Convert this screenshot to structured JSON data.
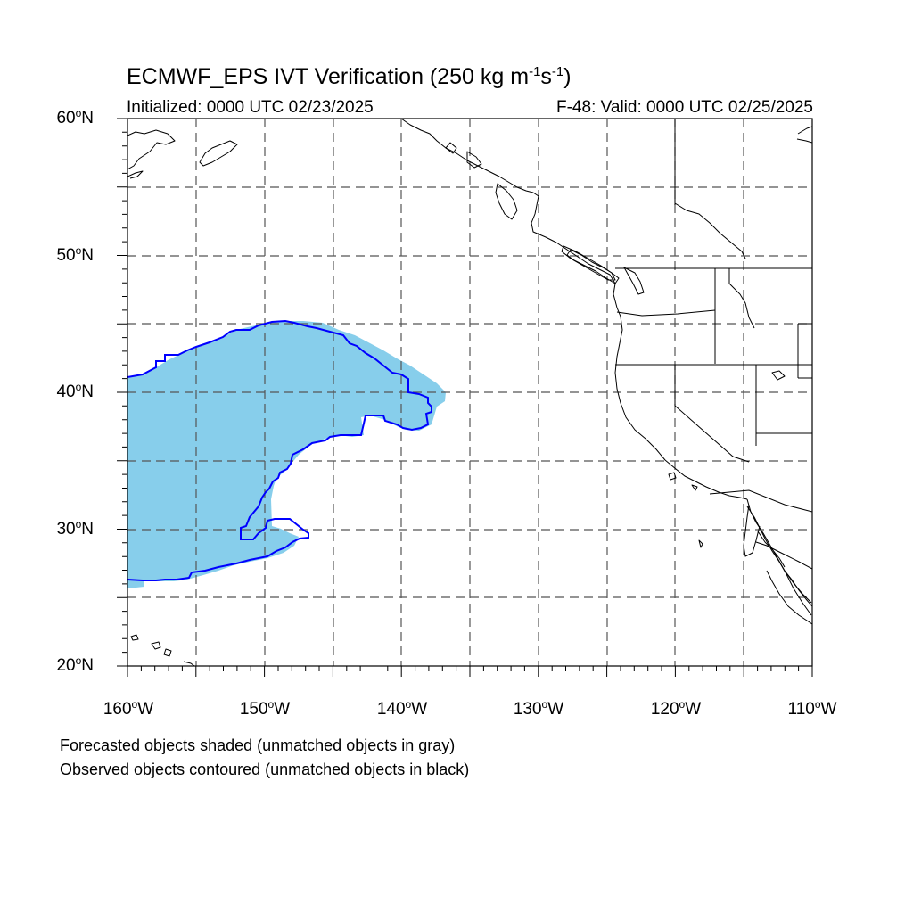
{
  "title_prefix": "ECMWF_EPS IVT Verification (250 kg m",
  "title_exp1": "-1",
  "title_mid": "s",
  "title_exp2": "-1",
  "title_suffix": ")",
  "initialized": "Initialized: 0000 UTC 02/23/2025",
  "valid": "F-48: Valid: 0000 UTC 02/25/2025",
  "lat_labels": [
    {
      "text": "60",
      "hemi": "N"
    },
    {
      "text": "50",
      "hemi": "N"
    },
    {
      "text": "40",
      "hemi": "N"
    },
    {
      "text": "30",
      "hemi": "N"
    },
    {
      "text": "20",
      "hemi": "N"
    }
  ],
  "lon_labels": [
    {
      "text": "160",
      "hemi": "W"
    },
    {
      "text": "150",
      "hemi": "W"
    },
    {
      "text": "140",
      "hemi": "W"
    },
    {
      "text": "130",
      "hemi": "W"
    },
    {
      "text": "120",
      "hemi": "W"
    },
    {
      "text": "110",
      "hemi": "W"
    }
  ],
  "footnote_1": "Forecasted objects shaded (unmatched objects in gray)",
  "footnote_2": "Observed objects contoured (unmatched objects in black)",
  "colors": {
    "forecast_fill": "#87ceeb",
    "observed_contour": "#0000ff",
    "coastline": "#000000",
    "grid": "#555555"
  }
}
